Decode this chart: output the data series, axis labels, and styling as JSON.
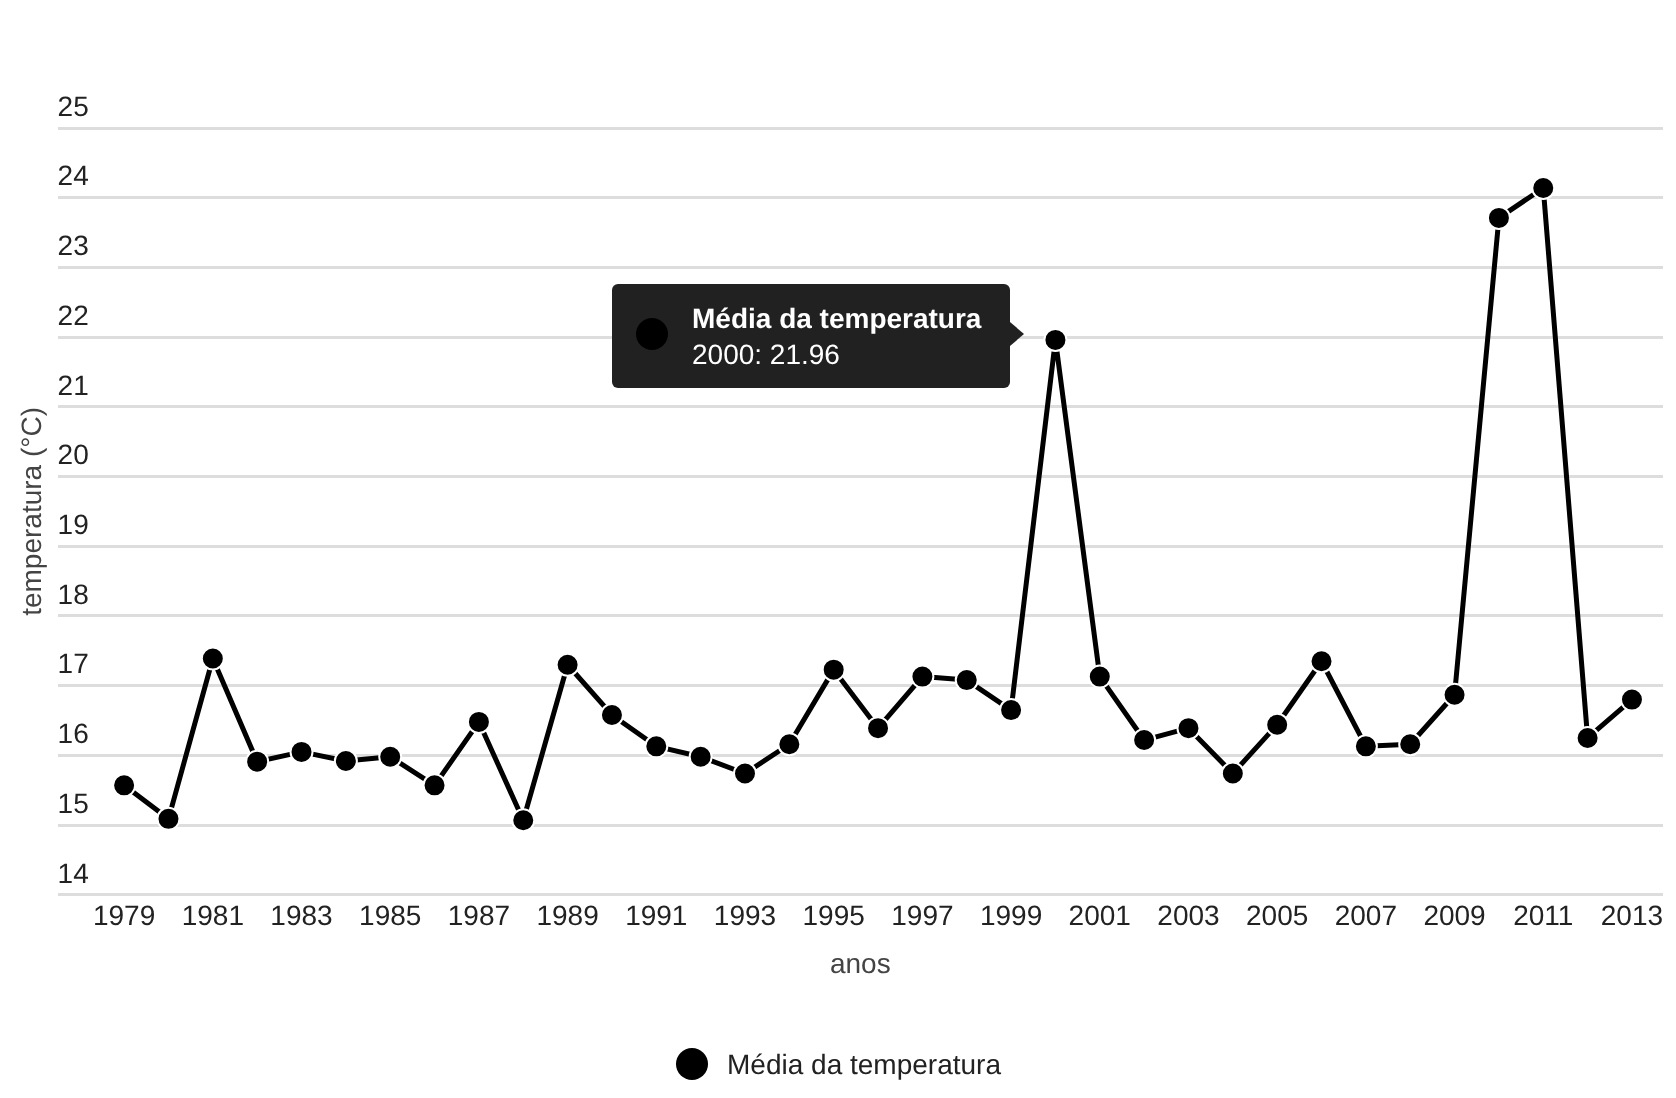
{
  "chart_data": {
    "type": "line",
    "xlabel": "anos",
    "ylabel": "temperatura (°C)",
    "x": [
      1979,
      1980,
      1981,
      1982,
      1983,
      1984,
      1985,
      1986,
      1987,
      1988,
      1989,
      1990,
      1991,
      1992,
      1993,
      1994,
      1995,
      1996,
      1997,
      1998,
      1999,
      2000,
      2001,
      2002,
      2003,
      2004,
      2005,
      2006,
      2007,
      2008,
      2009,
      2010,
      2011,
      2012,
      2013
    ],
    "series": [
      {
        "name": "Média da temperatura",
        "color": "#000000",
        "values": [
          15.57,
          15.09,
          17.39,
          15.91,
          16.05,
          15.92,
          15.98,
          15.57,
          16.48,
          15.07,
          17.3,
          16.58,
          16.13,
          15.98,
          15.74,
          16.16,
          17.23,
          16.39,
          17.13,
          17.08,
          16.65,
          21.96,
          17.13,
          16.22,
          16.39,
          15.74,
          16.44,
          17.35,
          16.13,
          16.16,
          16.87,
          23.71,
          24.14,
          16.25,
          16.8
        ]
      }
    ],
    "xlim": [
      1977.5,
      2013.7
    ],
    "xticks": [
      1979,
      1981,
      1983,
      1985,
      1987,
      1989,
      1991,
      1993,
      1995,
      1997,
      1999,
      2001,
      2003,
      2005,
      2007,
      2009,
      2011,
      2013
    ],
    "ylim": [
      14,
      25
    ],
    "yticks": [
      14,
      15,
      16,
      17,
      18,
      19,
      20,
      21,
      22,
      23,
      24,
      25
    ],
    "grid": "y",
    "legend": "bottom",
    "marker": "circle",
    "line_style": "solid",
    "annotations": [
      "Média da temperatura",
      "2000: 21.96"
    ]
  }
}
